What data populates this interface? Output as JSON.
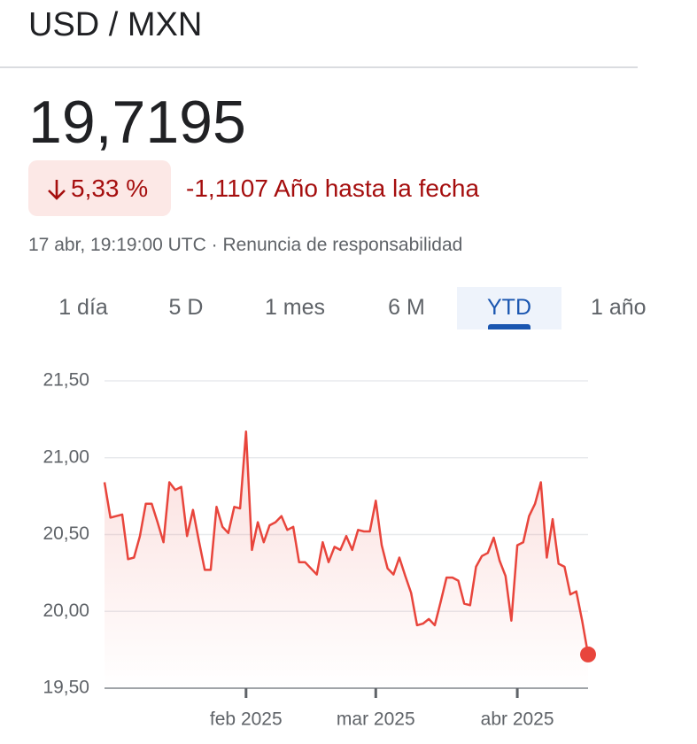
{
  "header": {
    "title": "USD / MXN"
  },
  "quote": {
    "price": "19,7195",
    "change_percent": "5,33 %",
    "change": "-1,1107",
    "period": "Año hasta la fecha",
    "timestamp": "17 abr, 19:19:00 UTC · Renuncia de responsabilidad"
  },
  "tabs": {
    "items": [
      "1 día",
      "5 D",
      "1 mes",
      "6 M",
      "YTD",
      "1 año"
    ],
    "selected": 4
  },
  "chart_data": {
    "type": "line",
    "color": "#e8453c",
    "grid": true,
    "categories": [
      null,
      null,
      null,
      null,
      null,
      null,
      null,
      null,
      null,
      null,
      null,
      null,
      null,
      null,
      null,
      null,
      null,
      null,
      null,
      null,
      null,
      null,
      null,
      null,
      "feb 2025",
      null,
      null,
      null,
      null,
      null,
      null,
      null,
      null,
      null,
      null,
      null,
      null,
      null,
      null,
      null,
      null,
      null,
      null,
      null,
      null,
      null,
      "mar 2025",
      null,
      null,
      null,
      null,
      null,
      null,
      null,
      null,
      null,
      null,
      null,
      null,
      null,
      null,
      null,
      null,
      null,
      null,
      null,
      null,
      null,
      null,
      null,
      "abr 2025",
      null,
      null,
      null,
      null,
      null,
      null,
      null,
      null,
      null,
      null,
      null,
      null
    ],
    "values": [
      20.84,
      20.61,
      20.62,
      20.63,
      20.34,
      20.35,
      20.49,
      20.7,
      20.7,
      20.58,
      20.45,
      20.84,
      20.79,
      20.81,
      20.49,
      20.66,
      20.46,
      20.27,
      20.27,
      20.68,
      20.55,
      20.51,
      20.68,
      20.67,
      21.17,
      20.4,
      20.58,
      20.45,
      20.56,
      20.58,
      20.62,
      20.53,
      20.55,
      20.32,
      20.32,
      20.28,
      20.24,
      20.45,
      20.32,
      20.42,
      20.4,
      20.49,
      20.4,
      20.53,
      20.52,
      20.52,
      20.72,
      20.43,
      20.28,
      20.24,
      20.35,
      20.23,
      20.12,
      19.91,
      19.92,
      19.95,
      19.91,
      20.06,
      20.22,
      20.22,
      20.2,
      20.05,
      20.04,
      20.29,
      20.36,
      20.38,
      20.48,
      20.33,
      20.23,
      19.94,
      20.43,
      20.45,
      20.62,
      20.7,
      20.84,
      20.35,
      20.6,
      20.31,
      20.29,
      20.11,
      20.13,
      19.94,
      19.7195
    ],
    "ylim": [
      19.5,
      21.5
    ],
    "yticks": [
      {
        "value": 19.5,
        "label": "19,50"
      },
      {
        "value": 20,
        "label": "20,00"
      },
      {
        "value": 20.5,
        "label": "20,50"
      },
      {
        "value": 21,
        "label": "21,00"
      },
      {
        "value": 21.5,
        "label": "21,50"
      }
    ]
  }
}
